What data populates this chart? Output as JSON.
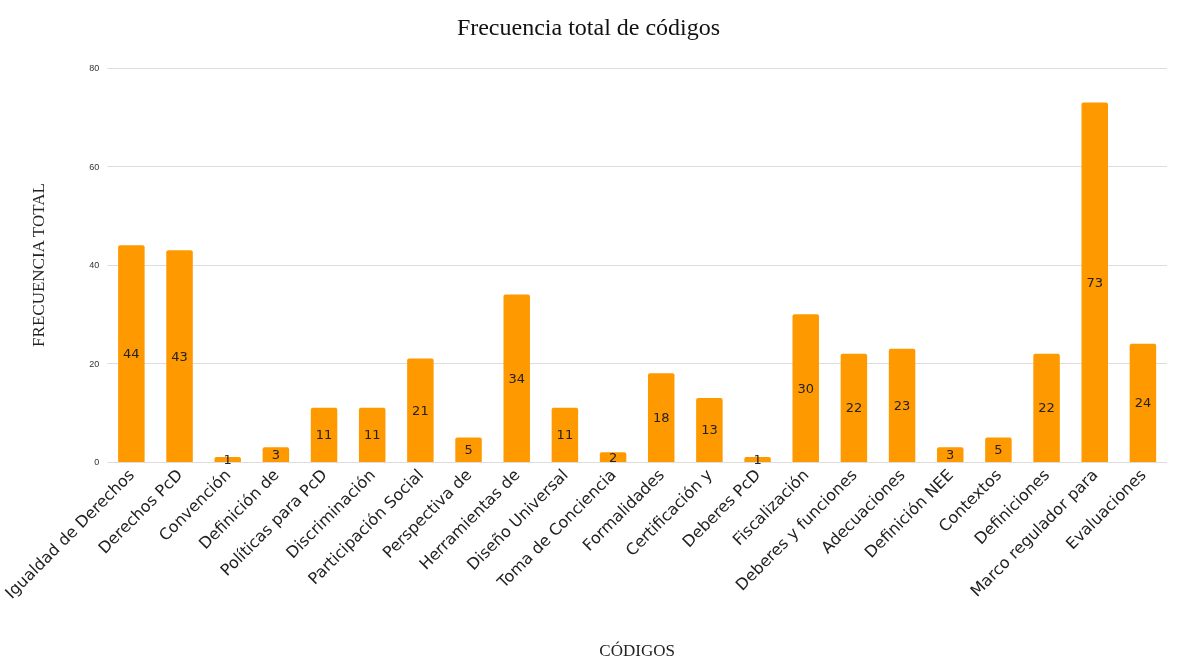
{
  "chart_data": {
    "type": "bar",
    "title": "Frecuencia total de códigos",
    "xlabel": "CÓDIGOS",
    "ylabel": "FRECUENCIA TOTAL",
    "categories": [
      "Igualdad de Derechos",
      "Derechos PcD",
      "Convención",
      "Definición de",
      "Políticas para PcD",
      "Discriminación",
      "Participación Social",
      "Perspectiva de",
      "Herramientas de",
      "Diseño Universal",
      "Toma de Conciencia",
      "Formalidades",
      "Certificación y",
      "Deberes PcD",
      "Fiscalización",
      "Deberes y funciones",
      "Adecuaciones",
      "Definición NEE",
      "Contextos",
      "Definiciones",
      "Marco regulador para",
      "Evaluaciones"
    ],
    "values": [
      44,
      43,
      1,
      3,
      11,
      11,
      21,
      5,
      34,
      11,
      2,
      18,
      13,
      1,
      30,
      22,
      23,
      3,
      5,
      22,
      73,
      24
    ],
    "color": "#ff9900",
    "ylim": [
      0,
      80
    ],
    "yticks": [
      0,
      20,
      40,
      60,
      80
    ],
    "grid": "y",
    "data_labels": true
  }
}
